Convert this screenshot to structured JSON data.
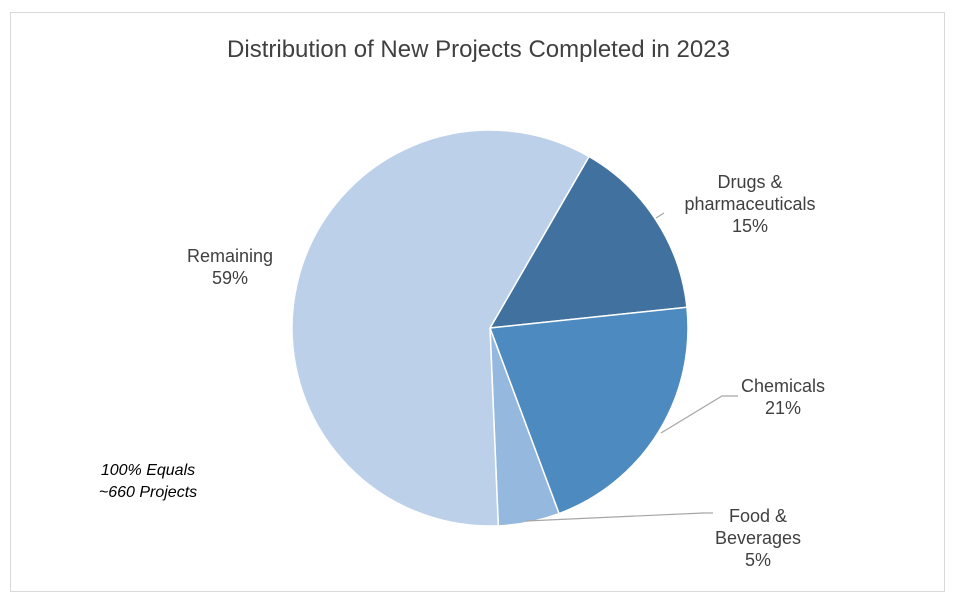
{
  "chart_data": {
    "type": "pie",
    "title": "Distribution of New Projects Completed in 2023",
    "slices": [
      {
        "label_lines": [
          "Drugs &",
          "pharmaceuticals"
        ],
        "value": 15,
        "value_label": "15%",
        "color": "#41729f"
      },
      {
        "label_lines": [
          "Chemicals"
        ],
        "value": 21,
        "value_label": "21%",
        "color": "#4d8abf"
      },
      {
        "label_lines": [
          "Food &",
          "Beverages"
        ],
        "value": 5,
        "value_label": "5%",
        "color": "#95b8df"
      },
      {
        "label_lines": [
          "Remaining"
        ],
        "value": 59,
        "value_label": "59%",
        "color": "#bdd0ea"
      }
    ],
    "note_lines": [
      "100% Equals",
      "~660 Projects"
    ]
  }
}
